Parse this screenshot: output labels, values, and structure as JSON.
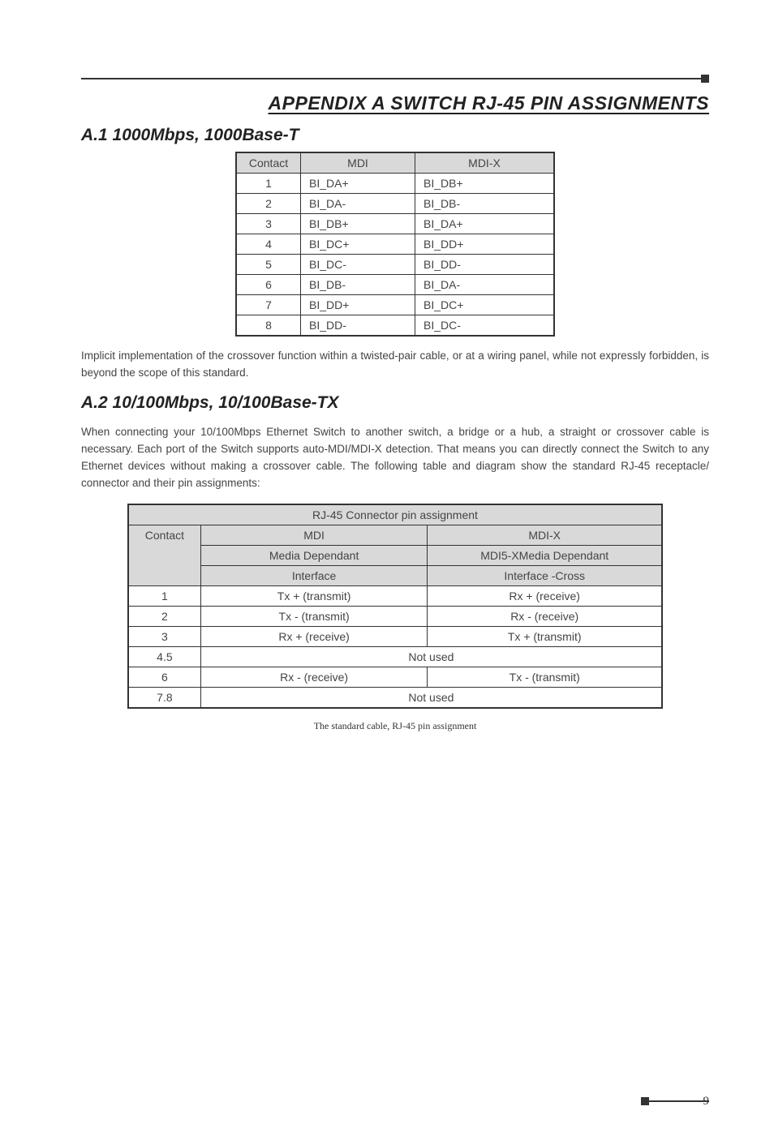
{
  "appendix_title": "APPENDIX A SWITCH RJ-45 PIN ASSIGNMENTS",
  "section_a1": {
    "heading": "A.1 1000Mbps, 1000Base-T",
    "table": {
      "columns": [
        "Contact",
        "MDI",
        "MDI-X"
      ],
      "rows": [
        [
          "1",
          "BI_DA+",
          "BI_DB+"
        ],
        [
          "2",
          "BI_DA-",
          "BI_DB-"
        ],
        [
          "3",
          "BI_DB+",
          "BI_DA+"
        ],
        [
          "4",
          "BI_DC+",
          "BI_DD+"
        ],
        [
          "5",
          "BI_DC-",
          "BI_DD-"
        ],
        [
          "6",
          "BI_DB-",
          "BI_DA-"
        ],
        [
          "7",
          "BI_DD+",
          "BI_DC+"
        ],
        [
          "8",
          "BI_DD-",
          "BI_DC-"
        ]
      ]
    },
    "body": "Implicit implementation of the crossover function within a twisted-pair cable, or at a wiring panel, while not expressly forbidden, is beyond the scope of this standard."
  },
  "section_a2": {
    "heading": "A.2 10/100Mbps, 10/100Base-TX",
    "body": "When connecting your 10/100Mbps Ethernet Switch to another switch, a bridge or a hub, a straight or crossover cable is necessary. Each port of the Switch supports auto-MDI/MDI-X detection. That means you can directly connect the Switch to any Ethernet devices without making a crossover cable. The following table and diagram show the standard RJ-45 receptacle/ connector and their pin assignments:",
    "table": {
      "title": "RJ-45 Connector pin assignment",
      "header": {
        "contact": "Contact",
        "mdi_label": "MDI",
        "mdi_sub1": "Media Dependant",
        "mdi_sub2": "Interface",
        "mdix_label": "MDI-X",
        "mdix_sub1": "MDI5-XMedia Dependant",
        "mdix_sub2": "Interface -Cross"
      },
      "rows": [
        {
          "contact": "1",
          "mdi": "Tx + (transmit)",
          "mdix": "Rx + (receive)"
        },
        {
          "contact": "2",
          "mdi": "Tx - (transmit)",
          "mdix": "Rx - (receive)"
        },
        {
          "contact": "3",
          "mdi": "Rx + (receive)",
          "mdix": "Tx + (transmit)"
        },
        {
          "contact": "4.5",
          "span": "Not used"
        },
        {
          "contact": "6",
          "mdi": "Rx - (receive)",
          "mdix": "Tx - (transmit)"
        },
        {
          "contact": "7.8",
          "span": "Not used"
        }
      ]
    },
    "caption": "The standard cable, RJ-45 pin assignment"
  },
  "page_number": "9"
}
